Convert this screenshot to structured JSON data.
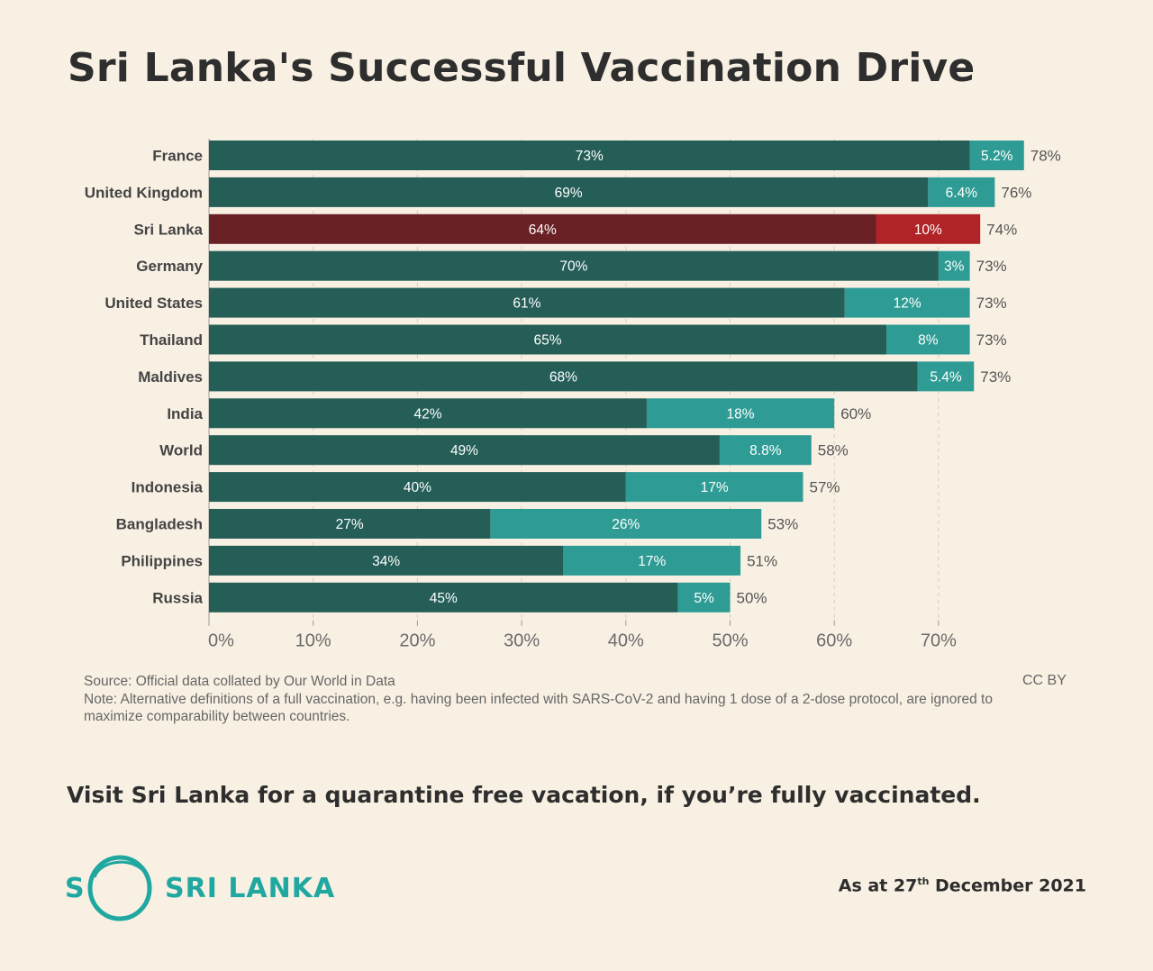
{
  "title": "Sri Lanka's Successful Vaccination Drive",
  "source": "Source: Official data collated by Our World in Data",
  "note": "Note: Alternative definitions of a full vaccination, e.g. having been infected with SARS-CoV-2 and having 1 dose of a 2-dose protocol, are ignored to maximize comparability between countries.",
  "license": "CC BY",
  "tagline": "Visit Sri Lanka for a quarantine free vacation, if you’re fully vaccinated.",
  "logo": {
    "letter": "S",
    "name": "SRI LANKA"
  },
  "as_of": {
    "prefix": "As at 27",
    "sup": "th",
    "suffix": " December 2021"
  },
  "colors": {
    "background": "#f8f0e3",
    "full": "#245e57",
    "partial": "#2e9c94",
    "highlight_full": "#6a2126",
    "highlight_partial": "#b02326",
    "brand": "#1fa7a0"
  },
  "chart_data": {
    "type": "bar",
    "orientation": "horizontal",
    "stacked": true,
    "categories": [
      "France",
      "United Kingdom",
      "Sri Lanka",
      "Germany",
      "United States",
      "Thailand",
      "Maldives",
      "India",
      "World",
      "Indonesia",
      "Bangladesh",
      "Philippines",
      "Russia"
    ],
    "highlight": "Sri Lanka",
    "series": [
      {
        "values": [
          73,
          69,
          64,
          70,
          61,
          65,
          68,
          42,
          49,
          40,
          27,
          34,
          45
        ],
        "labels": [
          "73%",
          "69%",
          "64%",
          "70%",
          "61%",
          "65%",
          "68%",
          "42%",
          "49%",
          "40%",
          "27%",
          "34%",
          "45%"
        ]
      },
      {
        "values": [
          5.2,
          6.4,
          10,
          3,
          12,
          8,
          5.4,
          18,
          8.8,
          17,
          26,
          17,
          5
        ],
        "labels": [
          "5.2%",
          "6.4%",
          "10%",
          "3%",
          "12%",
          "8%",
          "5.4%",
          "18%",
          "8.8%",
          "17%",
          "26%",
          "17%",
          "5%"
        ]
      }
    ],
    "totals": [
      78,
      76,
      74,
      73,
      73,
      73,
      73,
      60,
      58,
      57,
      53,
      51,
      50
    ],
    "total_labels": [
      "78%",
      "76%",
      "74%",
      "73%",
      "73%",
      "73%",
      "73%",
      "60%",
      "58%",
      "57%",
      "53%",
      "51%",
      "50%"
    ],
    "xlim": [
      0,
      80
    ],
    "xticks": [
      0,
      10,
      20,
      30,
      40,
      50,
      60,
      70
    ],
    "xtick_labels": [
      "0%",
      "10%",
      "20%",
      "30%",
      "40%",
      "50%",
      "60%",
      "70%"
    ],
    "grid": "vertical dashed"
  }
}
